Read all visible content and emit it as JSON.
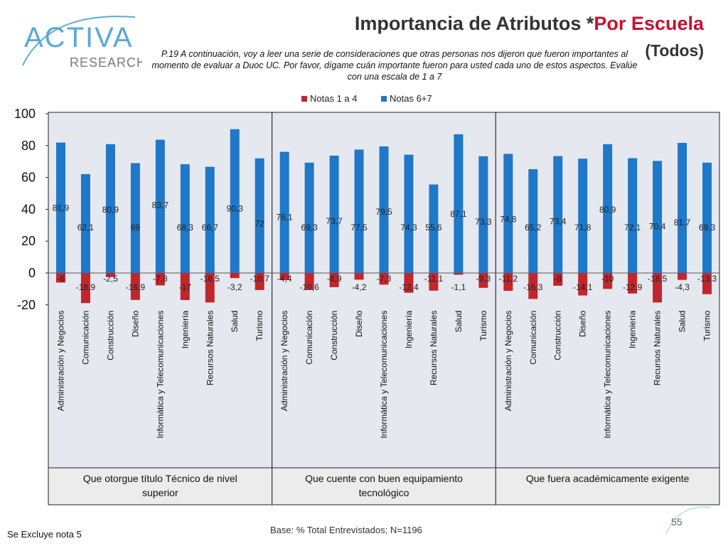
{
  "header": {
    "title_main": "Importancia de Atributos *",
    "title_accent": "Por Escuela",
    "subtitle": "(Todos)",
    "question": "P.19 A continuación, voy a leer una serie de consideraciones que otras personas nos dijeron que fueron importantes al momento de evaluar a Duoc UC. Por favor, dígame cuán importante fueron para usted cada uno de estos aspectos. Evalúe con una escala de 1 a 7"
  },
  "logo": {
    "text_top": "ACTIVA",
    "text_bottom": "RESEARCH",
    "icon": "activa-research-logo"
  },
  "footer": {
    "base": "Base: % Total Entrevistados; N=1196",
    "note": "Se Excluye nota 5",
    "page": "55"
  },
  "colors": {
    "positive": "#1f78c8",
    "negative": "#c0272d",
    "panel_bg": "#e6e8f0",
    "accent": "#c8102e"
  },
  "chart_data": {
    "type": "bar",
    "ylim": [
      -20,
      100
    ],
    "yticks": [
      100,
      80,
      60,
      40,
      20,
      0,
      -20
    ],
    "legend_position": "top",
    "series": [
      {
        "name": "Notas 1 a 4",
        "color": "#c0272d"
      },
      {
        "name": "Notas 6+7",
        "color": "#1f78c8"
      }
    ],
    "categories": [
      "Administración y Negocios",
      "Comunicación",
      "Construcción",
      "Diseño",
      "Informática y Telecomunicaciones",
      "Ingeniería",
      "Recursos Naturales",
      "Salud",
      "Turismo"
    ],
    "groups": [
      {
        "name": "Que otorgue título Técnico de nivel superior",
        "pos": [
          81.9,
          62.1,
          80.9,
          69,
          83.7,
          68.3,
          66.7,
          90.3,
          72
        ],
        "pos_labels": [
          "81,9",
          "62,1",
          "80,9",
          "69",
          "83,7",
          "68,3",
          "66,7",
          "90,3",
          "72"
        ],
        "neg": [
          -6,
          -18.9,
          -2.5,
          -16.9,
          -7.8,
          -17,
          -18.5,
          -3.2,
          -10.7
        ],
        "neg_labels": [
          "-6",
          "-18,9",
          "-2,5",
          "-16,9",
          "-7,8",
          "-17",
          "-18,5",
          "-3,2",
          "-10,7"
        ]
      },
      {
        "name": "Que cuente con buen equipamiento tecnológico",
        "pos": [
          76.1,
          69.3,
          73.7,
          77.5,
          79.5,
          74.3,
          55.6,
          87.1,
          73.3
        ],
        "pos_labels": [
          "76,1",
          "69,3",
          "73,7",
          "77,5",
          "79,5",
          "74,3",
          "55,6",
          "87,1",
          "73,3"
        ],
        "neg": [
          -4.4,
          -10.6,
          -8.9,
          -4.2,
          -7.3,
          -12.4,
          -11.1,
          -1.1,
          -9.3
        ],
        "neg_labels": [
          "-4,4",
          "-10,6",
          "-8,9",
          "-4,2",
          "-7,3",
          "-12,4",
          "-11,1",
          "-1,1",
          "-9,3"
        ]
      },
      {
        "name": "Que fuera académicamente exigente",
        "pos": [
          74.8,
          65.2,
          73.4,
          71.8,
          80.9,
          72.1,
          70.4,
          81.7,
          69.3
        ],
        "pos_labels": [
          "74,8",
          "65,2",
          "73,4",
          "71,8",
          "80,9",
          "72,1",
          "70,4",
          "81,7",
          "69,3"
        ],
        "neg": [
          -11.2,
          -16.3,
          -8,
          -14.1,
          -10,
          -12.9,
          -18.5,
          -4.3,
          -13.3
        ],
        "neg_labels": [
          "-11,2",
          "-16,3",
          "-8",
          "-14,1",
          "-10",
          "-12,9",
          "-18,5",
          "-4,3",
          "-13,3"
        ]
      }
    ]
  }
}
